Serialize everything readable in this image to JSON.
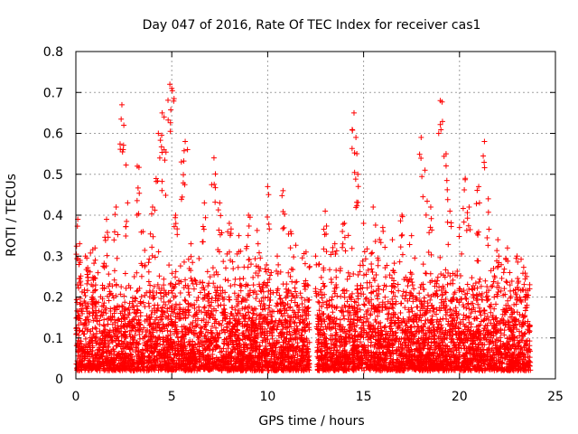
{
  "chart_data": {
    "type": "scatter",
    "title": "Day 047 of 2016, Rate Of TEC Index for receiver cas1",
    "xlabel": "GPS time / hours",
    "ylabel": "ROTI / TECUs",
    "xlim": [
      0,
      25
    ],
    "ylim": [
      0,
      0.8
    ],
    "xticks": [
      0,
      5,
      10,
      15,
      20,
      25
    ],
    "yticks": [
      0,
      0.1,
      0.2,
      0.3,
      0.4,
      0.5,
      0.6,
      0.7,
      0.8
    ],
    "xtick_labels": [
      "0",
      "5",
      "10",
      "15",
      "20",
      "25"
    ],
    "ytick_labels": [
      "0",
      "0.1",
      "0.2",
      "0.3",
      "0.4",
      "0.5",
      "0.6",
      "0.7",
      "0.8"
    ],
    "grid": true,
    "marker": "+",
    "series_color": "#ff0000",
    "series": [
      {
        "name": "cas1",
        "approx_points": 6000,
        "x_range": [
          0,
          23.7
        ],
        "sampled_points": [
          [
            0.1,
            0.39
          ],
          [
            0.2,
            0.33
          ],
          [
            0.5,
            0.3
          ],
          [
            1.0,
            0.32
          ],
          [
            1.6,
            0.39
          ],
          [
            2.1,
            0.42
          ],
          [
            2.4,
            0.67
          ],
          [
            2.5,
            0.62
          ],
          [
            2.7,
            0.43
          ],
          [
            3.2,
            0.52
          ],
          [
            3.5,
            0.36
          ],
          [
            4.0,
            0.42
          ],
          [
            4.3,
            0.6
          ],
          [
            4.5,
            0.65
          ],
          [
            4.6,
            0.56
          ],
          [
            4.9,
            0.72
          ],
          [
            5.0,
            0.71
          ],
          [
            5.2,
            0.4
          ],
          [
            5.5,
            0.53
          ],
          [
            5.7,
            0.58
          ],
          [
            6.0,
            0.33
          ],
          [
            6.7,
            0.43
          ],
          [
            7.2,
            0.54
          ],
          [
            7.5,
            0.43
          ],
          [
            8.0,
            0.38
          ],
          [
            8.5,
            0.35
          ],
          [
            9.0,
            0.4
          ],
          [
            9.5,
            0.33
          ],
          [
            10.0,
            0.47
          ],
          [
            10.5,
            0.3
          ],
          [
            10.8,
            0.46
          ],
          [
            11.2,
            0.36
          ],
          [
            12.0,
            0.31
          ],
          [
            12.5,
            0.3
          ],
          [
            13.0,
            0.41
          ],
          [
            13.5,
            0.33
          ],
          [
            14.0,
            0.38
          ],
          [
            14.5,
            0.65
          ],
          [
            14.6,
            0.59
          ],
          [
            14.7,
            0.5
          ],
          [
            15.0,
            0.38
          ],
          [
            15.5,
            0.42
          ],
          [
            16.0,
            0.37
          ],
          [
            16.5,
            0.34
          ],
          [
            17.0,
            0.4
          ],
          [
            17.5,
            0.35
          ],
          [
            18.0,
            0.59
          ],
          [
            18.2,
            0.51
          ],
          [
            18.5,
            0.42
          ],
          [
            19.0,
            0.68
          ],
          [
            19.3,
            0.55
          ],
          [
            19.5,
            0.41
          ],
          [
            20.0,
            0.37
          ],
          [
            20.3,
            0.49
          ],
          [
            20.5,
            0.42
          ],
          [
            21.0,
            0.47
          ],
          [
            21.3,
            0.58
          ],
          [
            21.5,
            0.44
          ],
          [
            22.0,
            0.34
          ],
          [
            22.5,
            0.32
          ],
          [
            23.0,
            0.3
          ],
          [
            23.5,
            0.25
          ]
        ]
      }
    ]
  }
}
